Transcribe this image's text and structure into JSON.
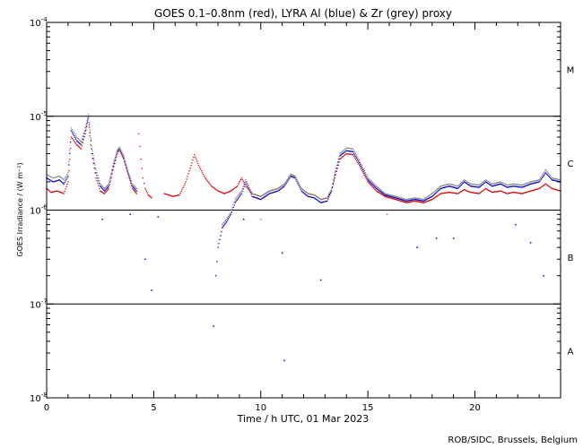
{
  "chart_data": {
    "type": "scatter",
    "title": "GOES 0.1–0.8nm (red), LYRA Al (blue) & Zr (grey) proxy",
    "xlabel": "Time / h UTC, 01 Mar 2023",
    "ylabel": "GOES Irradiance / (W m⁻²)",
    "xlim": [
      0,
      24
    ],
    "ylim": [
      1e-08,
      0.0001
    ],
    "yscale": "log",
    "x_ticks": [
      0,
      5,
      10,
      15,
      20
    ],
    "y_ticks": [
      {
        "value": 1e-08,
        "base": "10",
        "exp": "-8"
      },
      {
        "value": 1e-07,
        "base": "10",
        "exp": "-7"
      },
      {
        "value": 1e-06,
        "base": "10",
        "exp": "-6"
      },
      {
        "value": 1e-05,
        "base": "10",
        "exp": "-5"
      },
      {
        "value": 0.0001,
        "base": "10",
        "exp": "-4"
      }
    ],
    "threshold_lines": [
      1e-07,
      1e-06,
      1e-05
    ],
    "flare_classes": [
      {
        "label": "A",
        "center": 3.16e-08
      },
      {
        "label": "B",
        "center": 3.16e-07
      },
      {
        "label": "C",
        "center": 3.16e-06
      },
      {
        "label": "M",
        "center": 3.16e-05
      }
    ],
    "colors": {
      "goes": "#dd0000",
      "lyra_al": "#0000cc",
      "lyra_zr": "#888888"
    },
    "series": [
      {
        "name": "GOES 0.1-0.8nm",
        "color": "#dd0000",
        "segments": [
          [
            [
              0.0,
              1.7e-06
            ],
            [
              0.2,
              1.55e-06
            ],
            [
              0.5,
              1.6e-06
            ],
            [
              0.8,
              1.5e-06
            ],
            [
              1.0,
              2e-06
            ],
            [
              1.15,
              6e-06
            ],
            [
              1.4,
              5e-06
            ],
            [
              1.6,
              4.5e-06
            ],
            [
              1.8,
              6.5e-06
            ],
            [
              1.95,
              9.5e-06
            ],
            [
              2.1,
              4e-06
            ],
            [
              2.3,
              2.2e-06
            ],
            [
              2.5,
              1.6e-06
            ],
            [
              2.7,
              1.5e-06
            ],
            [
              2.9,
              1.7e-06
            ],
            [
              3.1,
              2.7e-06
            ],
            [
              3.3,
              4e-06
            ],
            [
              3.4,
              4.4e-06
            ],
            [
              3.6,
              3.5e-06
            ],
            [
              3.8,
              2.4e-06
            ],
            [
              4.0,
              1.7e-06
            ],
            [
              4.2,
              1.5e-06
            ]
          ],
          [
            [
              4.3,
              6.5e-06
            ],
            [
              4.4,
              3.5e-06
            ],
            [
              4.5,
              2.2e-06
            ],
            [
              4.6,
              1.7e-06
            ],
            [
              4.75,
              1.45e-06
            ],
            [
              4.9,
              1.35e-06
            ]
          ],
          [
            [
              5.5,
              1.5e-06
            ],
            [
              5.9,
              1.4e-06
            ],
            [
              6.2,
              1.45e-06
            ],
            [
              6.5,
              2e-06
            ],
            [
              6.7,
              2.8e-06
            ],
            [
              6.9,
              3.9e-06
            ],
            [
              7.1,
              3e-06
            ],
            [
              7.4,
              2.2e-06
            ],
            [
              7.7,
              1.8e-06
            ],
            [
              8.0,
              1.6e-06
            ],
            [
              8.3,
              1.5e-06
            ],
            [
              8.6,
              1.6e-06
            ],
            [
              8.9,
              1.8e-06
            ],
            [
              9.1,
              2.2e-06
            ],
            [
              9.3,
              1.8e-06
            ],
            [
              9.6,
              1.5e-06
            ],
            [
              10.0,
              1.4e-06
            ],
            [
              10.4,
              1.6e-06
            ],
            [
              10.8,
              1.7e-06
            ],
            [
              11.1,
              1.9e-06
            ],
            [
              11.4,
              2.4e-06
            ],
            [
              11.6,
              2.3e-06
            ],
            [
              11.9,
              1.7e-06
            ],
            [
              12.2,
              1.5e-06
            ],
            [
              12.5,
              1.45e-06
            ],
            [
              12.8,
              1.3e-06
            ],
            [
              13.1,
              1.35e-06
            ],
            [
              13.3,
              1.6e-06
            ],
            [
              13.5,
              2.4e-06
            ],
            [
              13.7,
              3.5e-06
            ],
            [
              14.0,
              4e-06
            ],
            [
              14.3,
              3.9e-06
            ],
            [
              14.6,
              3e-06
            ],
            [
              15.0,
              2e-06
            ],
            [
              15.4,
              1.6e-06
            ],
            [
              15.8,
              1.4e-06
            ],
            [
              16.3,
              1.3e-06
            ],
            [
              16.8,
              1.2e-06
            ],
            [
              17.2,
              1.25e-06
            ],
            [
              17.6,
              1.2e-06
            ],
            [
              18.0,
              1.3e-06
            ],
            [
              18.4,
              1.5e-06
            ],
            [
              18.8,
              1.55e-06
            ],
            [
              19.2,
              1.5e-06
            ],
            [
              19.5,
              1.65e-06
            ],
            [
              19.8,
              1.55e-06
            ],
            [
              20.2,
              1.5e-06
            ],
            [
              20.5,
              1.7e-06
            ],
            [
              20.8,
              1.55e-06
            ],
            [
              21.2,
              1.6e-06
            ],
            [
              21.5,
              1.5e-06
            ],
            [
              21.8,
              1.55e-06
            ],
            [
              22.2,
              1.5e-06
            ],
            [
              22.6,
              1.6e-06
            ],
            [
              23.0,
              1.7e-06
            ],
            [
              23.3,
              1.9e-06
            ],
            [
              23.6,
              1.7e-06
            ],
            [
              24.0,
              1.6e-06
            ]
          ]
        ]
      },
      {
        "name": "LYRA Al proxy",
        "color": "#0000cc",
        "segments": [
          [
            [
              0.0,
              2.2e-06
            ],
            [
              0.3,
              2e-06
            ],
            [
              0.6,
              2.1e-06
            ],
            [
              0.8,
              1.9e-06
            ],
            [
              1.0,
              2.3e-06
            ],
            [
              1.15,
              7e-06
            ],
            [
              1.4,
              5.5e-06
            ],
            [
              1.6,
              5e-06
            ],
            [
              1.8,
              7e-06
            ],
            [
              1.95,
              1e-05
            ],
            [
              2.1,
              4.5e-06
            ],
            [
              2.3,
              2.5e-06
            ],
            [
              2.5,
              1.8e-06
            ],
            [
              2.7,
              1.6e-06
            ],
            [
              2.9,
              1.8e-06
            ],
            [
              3.1,
              2.9e-06
            ],
            [
              3.3,
              4.2e-06
            ],
            [
              3.4,
              4.5e-06
            ],
            [
              3.6,
              3.6e-06
            ],
            [
              3.8,
              2.5e-06
            ],
            [
              4.0,
              1.8e-06
            ],
            [
              4.2,
              1.6e-06
            ]
          ],
          [
            [
              7.9,
              2e-07
            ],
            [
              8.0,
              4e-07
            ],
            [
              8.2,
              6.5e-07
            ],
            [
              8.4,
              7.5e-07
            ],
            [
              8.6,
              9e-07
            ],
            [
              8.8,
              1.2e-06
            ],
            [
              9.1,
              1.5e-06
            ],
            [
              9.3,
              2e-06
            ],
            [
              9.6,
              1.4e-06
            ],
            [
              10.0,
              1.3e-06
            ],
            [
              10.4,
              1.5e-06
            ],
            [
              10.8,
              1.6e-06
            ],
            [
              11.1,
              1.8e-06
            ],
            [
              11.4,
              2.3e-06
            ],
            [
              11.6,
              2.2e-06
            ],
            [
              11.9,
              1.6e-06
            ],
            [
              12.2,
              1.4e-06
            ],
            [
              12.5,
              1.35e-06
            ],
            [
              12.8,
              1.2e-06
            ],
            [
              13.1,
              1.25e-06
            ],
            [
              13.3,
              1.6e-06
            ],
            [
              13.5,
              2.6e-06
            ],
            [
              13.7,
              3.8e-06
            ],
            [
              14.0,
              4.3e-06
            ],
            [
              14.3,
              4.2e-06
            ],
            [
              14.6,
              3.2e-06
            ],
            [
              15.0,
              2.1e-06
            ],
            [
              15.4,
              1.7e-06
            ],
            [
              15.8,
              1.45e-06
            ],
            [
              16.3,
              1.35e-06
            ],
            [
              16.8,
              1.25e-06
            ],
            [
              17.2,
              1.3e-06
            ],
            [
              17.6,
              1.25e-06
            ],
            [
              18.0,
              1.4e-06
            ],
            [
              18.4,
              1.7e-06
            ],
            [
              18.8,
              1.8e-06
            ],
            [
              19.2,
              1.7e-06
            ],
            [
              19.5,
              2e-06
            ],
            [
              19.8,
              1.8e-06
            ],
            [
              20.2,
              1.75e-06
            ],
            [
              20.5,
              2e-06
            ],
            [
              20.8,
              1.8e-06
            ],
            [
              21.2,
              1.9e-06
            ],
            [
              21.5,
              1.75e-06
            ],
            [
              21.8,
              1.8e-06
            ],
            [
              22.2,
              1.75e-06
            ],
            [
              22.6,
              1.9e-06
            ],
            [
              23.0,
              2e-06
            ],
            [
              23.3,
              2.5e-06
            ],
            [
              23.6,
              2.1e-06
            ],
            [
              24.0,
              2e-06
            ]
          ]
        ]
      },
      {
        "name": "LYRA Zr proxy",
        "color": "#888888",
        "segments": [
          [
            [
              0.0,
              2.4e-06
            ],
            [
              0.3,
              2.2e-06
            ],
            [
              0.6,
              2.3e-06
            ],
            [
              0.8,
              2.1e-06
            ],
            [
              1.0,
              2.5e-06
            ],
            [
              1.15,
              7.5e-06
            ],
            [
              1.4,
              6e-06
            ],
            [
              1.6,
              5.4e-06
            ],
            [
              1.8,
              7.5e-06
            ],
            [
              1.95,
              1.05e-05
            ],
            [
              2.1,
              4.8e-06
            ],
            [
              2.3,
              2.7e-06
            ],
            [
              2.5,
              1.9e-06
            ],
            [
              2.7,
              1.7e-06
            ],
            [
              2.9,
              1.9e-06
            ],
            [
              3.1,
              3e-06
            ],
            [
              3.3,
              4.4e-06
            ],
            [
              3.4,
              4.7e-06
            ],
            [
              3.6,
              3.8e-06
            ],
            [
              3.8,
              2.6e-06
            ],
            [
              4.0,
              1.9e-06
            ],
            [
              4.2,
              1.7e-06
            ]
          ],
          [
            [
              8.2,
              7e-07
            ],
            [
              8.4,
              8e-07
            ],
            [
              8.6,
              9.5e-07
            ],
            [
              8.8,
              1.3e-06
            ],
            [
              9.1,
              1.6e-06
            ],
            [
              9.3,
              2.1e-06
            ],
            [
              9.6,
              1.5e-06
            ],
            [
              10.0,
              1.4e-06
            ],
            [
              10.4,
              1.6e-06
            ],
            [
              10.8,
              1.7e-06
            ],
            [
              11.1,
              1.9e-06
            ],
            [
              11.4,
              2.4e-06
            ],
            [
              11.6,
              2.3e-06
            ],
            [
              11.9,
              1.7e-06
            ],
            [
              12.2,
              1.5e-06
            ],
            [
              12.5,
              1.45e-06
            ],
            [
              12.8,
              1.3e-06
            ],
            [
              13.1,
              1.35e-06
            ],
            [
              13.3,
              1.7e-06
            ],
            [
              13.5,
              2.8e-06
            ],
            [
              13.7,
              4e-06
            ],
            [
              14.0,
              4.6e-06
            ],
            [
              14.3,
              4.5e-06
            ],
            [
              14.6,
              3.4e-06
            ],
            [
              15.0,
              2.2e-06
            ],
            [
              15.4,
              1.8e-06
            ],
            [
              15.8,
              1.5e-06
            ],
            [
              16.3,
              1.4e-06
            ],
            [
              16.8,
              1.3e-06
            ],
            [
              17.2,
              1.35e-06
            ],
            [
              17.6,
              1.3e-06
            ],
            [
              18.0,
              1.5e-06
            ],
            [
              18.4,
              1.8e-06
            ],
            [
              18.8,
              1.9e-06
            ],
            [
              19.2,
              1.8e-06
            ],
            [
              19.5,
              2.1e-06
            ],
            [
              19.8,
              1.9e-06
            ],
            [
              20.2,
              1.85e-06
            ],
            [
              20.5,
              2.1e-06
            ],
            [
              20.8,
              1.9e-06
            ],
            [
              21.2,
              2e-06
            ],
            [
              21.5,
              1.85e-06
            ],
            [
              21.8,
              1.9e-06
            ],
            [
              22.2,
              1.85e-06
            ],
            [
              22.6,
              2e-06
            ],
            [
              23.0,
              2.1e-06
            ],
            [
              23.3,
              2.7e-06
            ],
            [
              23.6,
              2.2e-06
            ],
            [
              24.0,
              2.1e-06
            ]
          ]
        ]
      }
    ],
    "outliers": [
      {
        "x": 2.6,
        "y": 8e-07,
        "series": "LYRA Al proxy"
      },
      {
        "x": 3.9,
        "y": 9e-07,
        "series": "LYRA Al proxy"
      },
      {
        "x": 4.6,
        "y": 3e-07,
        "series": "LYRA Al proxy"
      },
      {
        "x": 4.9,
        "y": 1.4e-07,
        "series": "LYRA Al proxy"
      },
      {
        "x": 5.2,
        "y": 8.5e-07,
        "series": "LYRA Al proxy"
      },
      {
        "x": 7.8,
        "y": 5.8e-08,
        "series": "LYRA Al proxy"
      },
      {
        "x": 9.2,
        "y": 8e-07,
        "series": "LYRA Al proxy"
      },
      {
        "x": 11.0,
        "y": 3.5e-07,
        "series": "LYRA Al proxy"
      },
      {
        "x": 11.1,
        "y": 2.5e-08,
        "series": "LYRA Al proxy"
      },
      {
        "x": 12.8,
        "y": 1.8e-07,
        "series": "LYRA Al proxy"
      },
      {
        "x": 17.3,
        "y": 4e-07,
        "series": "LYRA Al proxy"
      },
      {
        "x": 18.2,
        "y": 5e-07,
        "series": "LYRA Al proxy"
      },
      {
        "x": 19.0,
        "y": 5e-07,
        "series": "LYRA Al proxy"
      },
      {
        "x": 21.9,
        "y": 7e-07,
        "series": "LYRA Al proxy"
      },
      {
        "x": 22.6,
        "y": 4.5e-07,
        "series": "LYRA Al proxy"
      },
      {
        "x": 23.2,
        "y": 2e-07,
        "series": "LYRA Al proxy"
      },
      {
        "x": 10.0,
        "y": 8e-07,
        "series": "LYRA Zr proxy"
      },
      {
        "x": 15.9,
        "y": 9e-07,
        "series": "LYRA Zr proxy"
      }
    ]
  },
  "footer": {
    "credit": "ROB/SIDC, Brussels, Belgium"
  }
}
